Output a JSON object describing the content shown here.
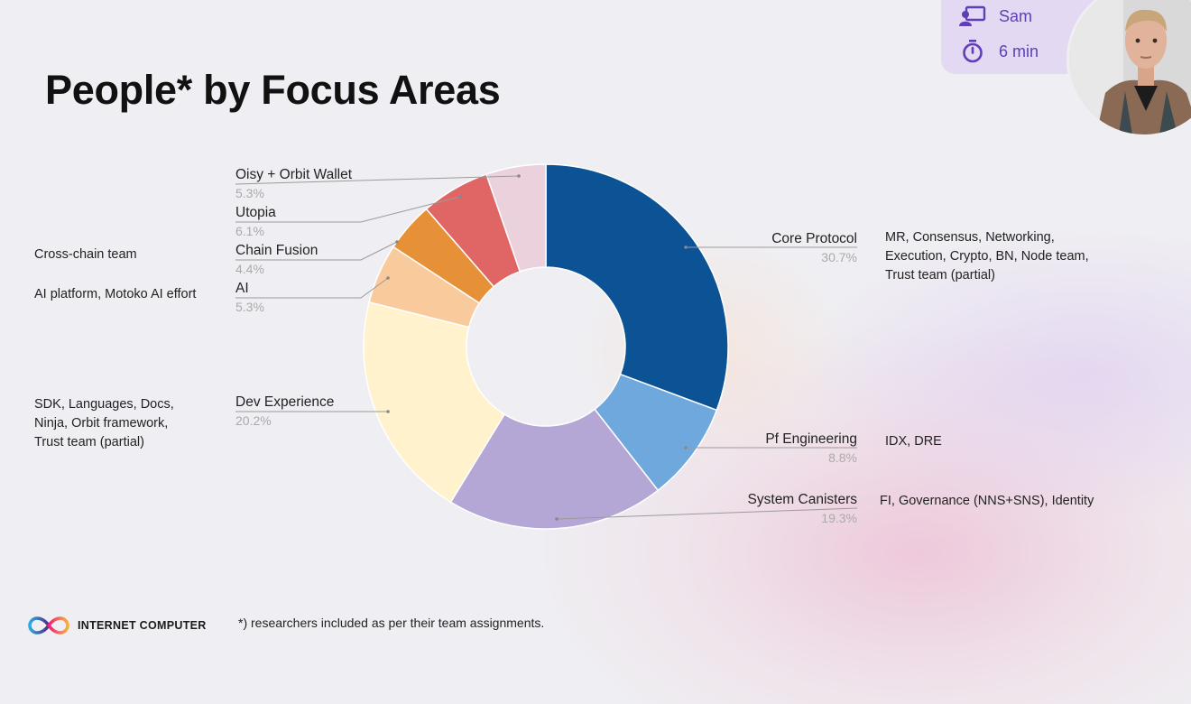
{
  "slide": {
    "title": "People* by Focus Areas",
    "footnote": "*) researchers included as per their team assignments.",
    "brand": "INTERNET COMPUTER"
  },
  "presenter": {
    "name": "Sam",
    "duration": "6 min",
    "presenter_icon": "presenter-icon",
    "timer_icon": "stopwatch-icon"
  },
  "notes": {
    "cross_chain": [
      "Cross-chain team"
    ],
    "ai": [
      "AI platform, Motoko AI effort"
    ],
    "dev_experience": [
      "SDK, Languages, Docs,",
      "Ninja, Orbit framework,",
      "Trust team (partial)"
    ],
    "core_protocol": [
      "MR, Consensus, Networking,",
      "Execution, Crypto, BN, Node team,",
      "Trust team (partial)"
    ],
    "pf_engineering": [
      "IDX, DRE"
    ],
    "system_canisters": [
      "FI, Governance (NNS+SNS), Identity"
    ]
  },
  "chart_data": {
    "type": "pie",
    "donut": true,
    "title": "People* by Focus Areas",
    "legend": "none",
    "slices": [
      {
        "label": "Core Protocol",
        "value": 30.7,
        "display": "30.7%",
        "color": "#0b5394"
      },
      {
        "label": "Pf Engineering",
        "value": 8.8,
        "display": "8.8%",
        "color": "#6fa8dc"
      },
      {
        "label": "System Canisters",
        "value": 19.3,
        "display": "19.3%",
        "color": "#b4a7d6"
      },
      {
        "label": "Dev Experience",
        "value": 20.2,
        "display": "20.2%",
        "color": "#fff2cc"
      },
      {
        "label": "AI",
        "value": 5.3,
        "display": "5.3%",
        "color": "#f9cb9c"
      },
      {
        "label": "Chain Fusion",
        "value": 4.4,
        "display": "4.4%",
        "color": "#e69138"
      },
      {
        "label": "Utopia",
        "value": 6.1,
        "display": "6.1%",
        "color": "#e06666"
      },
      {
        "label": "Oisy + Orbit Wallet",
        "value": 5.3,
        "display": "5.3%",
        "color": "#ead1dc"
      }
    ]
  }
}
